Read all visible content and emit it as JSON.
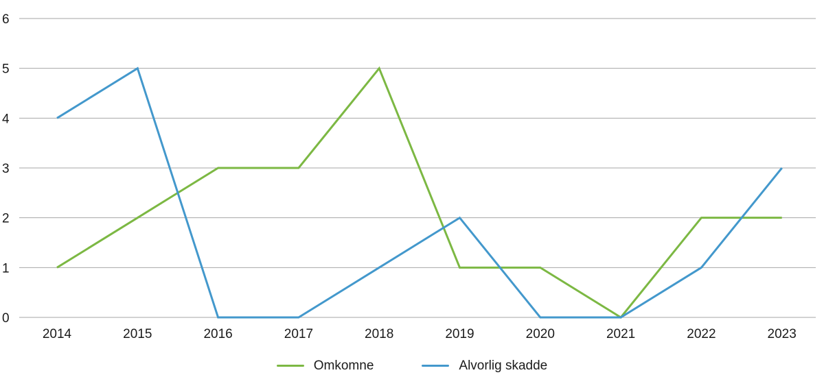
{
  "chart_data": {
    "type": "line",
    "categories": [
      "2014",
      "2015",
      "2016",
      "2017",
      "2018",
      "2019",
      "2020",
      "2021",
      "2022",
      "2023"
    ],
    "series": [
      {
        "name": "Omkomne",
        "color": "#7cb843",
        "values": [
          1,
          2,
          3,
          3,
          5,
          1,
          1,
          0,
          2,
          2
        ]
      },
      {
        "name": "Alvorlig skadde",
        "color": "#4398cc",
        "values": [
          4,
          5,
          0,
          0,
          1,
          2,
          0,
          0,
          1,
          3
        ]
      }
    ],
    "ylim": [
      0,
      6
    ],
    "ytick_step": 1,
    "grid": true,
    "legend_position": "bottom",
    "title": "",
    "xlabel": "",
    "ylabel": ""
  },
  "legend": {
    "items": [
      {
        "label": "Omkomne",
        "color": "#7cb843"
      },
      {
        "label": "Alvorlig skadde",
        "color": "#4398cc"
      }
    ]
  },
  "style": {
    "grid_color": "#a6a6a6",
    "text_color": "#1a1a1a",
    "background": "#ffffff",
    "line_width": 3
  }
}
